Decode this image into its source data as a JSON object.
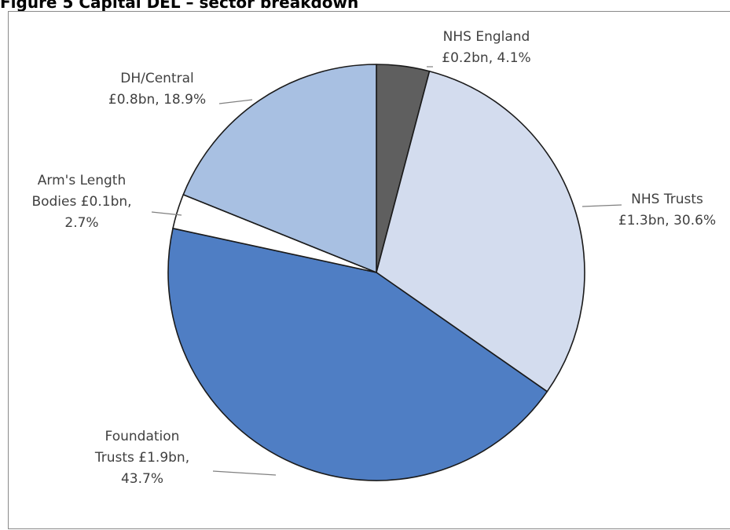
{
  "figure_title": "Figure 5 Capital DEL – sector breakdown",
  "chart_data": {
    "type": "pie",
    "title": "Figure 5 Capital DEL – sector breakdown",
    "slices": [
      {
        "name": "NHS England",
        "value": 0.2,
        "percent": 4.1,
        "label_lines": [
          "NHS England",
          "£0.2bn, 4.1%"
        ],
        "fill": "#5f5f5f"
      },
      {
        "name": "NHS Trusts",
        "value": 1.3,
        "percent": 30.6,
        "label_lines": [
          "NHS Trusts",
          "£1.3bn, 30.6%"
        ],
        "fill": "#d3dcee"
      },
      {
        "name": "Foundation Trusts",
        "value": 1.9,
        "percent": 43.7,
        "label_lines": [
          "Foundation",
          "Trusts  £1.9bn,",
          "43.7%"
        ],
        "fill": "#4f7ec4"
      },
      {
        "name": "Arm's Length Bodies",
        "value": 0.1,
        "percent": 2.7,
        "label_lines": [
          "Arm's Length",
          "Bodies  £0.1bn,",
          "2.7%"
        ],
        "fill": "#ffffff"
      },
      {
        "name": "DH/Central",
        "value": 0.8,
        "percent": 18.9,
        "label_lines": [
          "DH/Central",
          "£0.8bn, 18.9%"
        ],
        "fill": "#a8c0e2"
      }
    ],
    "start_angle_deg": 0,
    "direction": "clockwise",
    "legend": "none"
  }
}
